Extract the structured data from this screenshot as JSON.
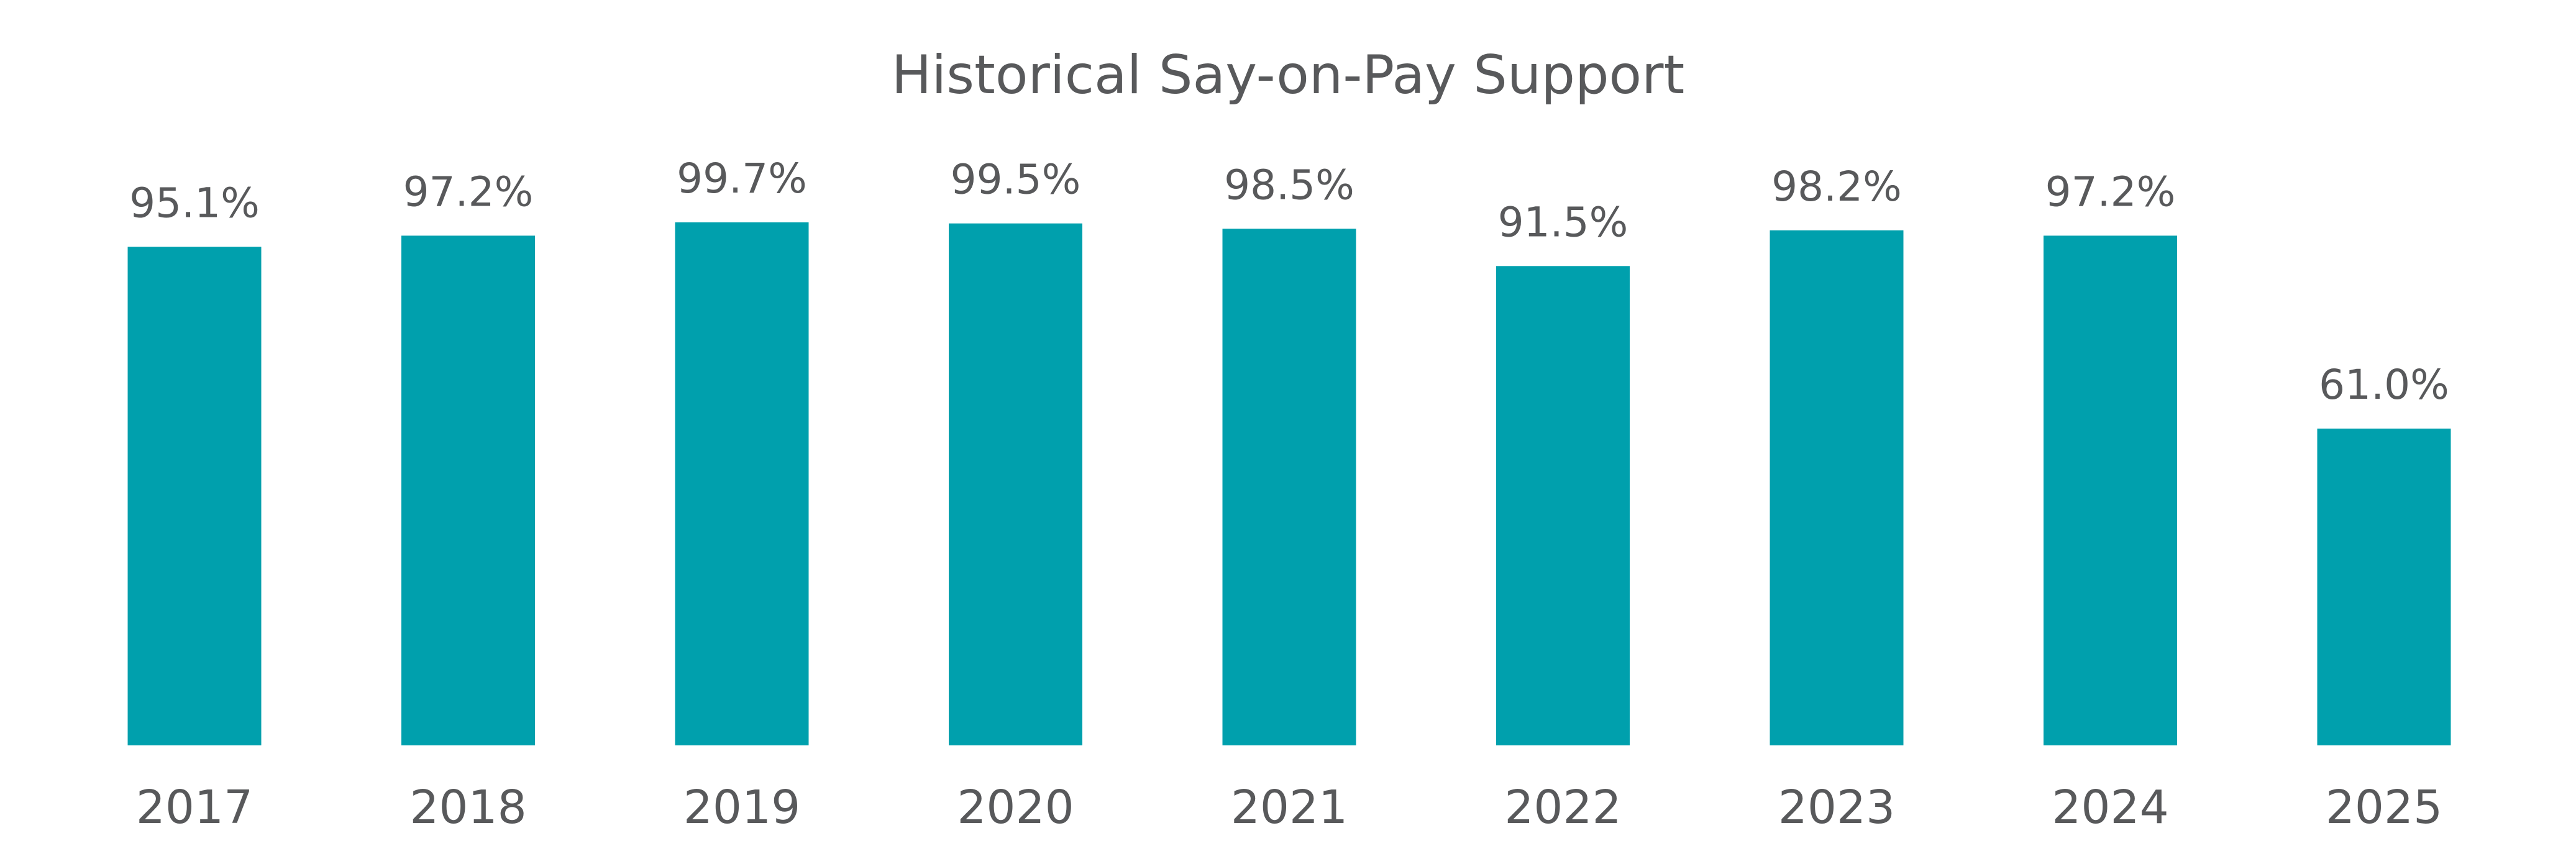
{
  "chart_data": {
    "type": "bar",
    "title": "Historical Say-on-Pay Support",
    "xlabel": "",
    "ylabel": "",
    "categories": [
      "2017",
      "2018",
      "2019",
      "2020",
      "2021",
      "2022",
      "2023",
      "2024",
      "2025"
    ],
    "values": [
      95.1,
      97.2,
      99.7,
      99.5,
      98.5,
      91.5,
      98.2,
      97.2,
      61.0
    ],
    "value_labels": [
      "95.1%",
      "97.2%",
      "99.7%",
      "99.5%",
      "98.5%",
      "91.5%",
      "98.2%",
      "97.2%",
      "61.0%"
    ],
    "ylim": [
      0,
      100
    ],
    "grid": false,
    "legend": "none",
    "bar_color": "#00a0ad",
    "text_color": "#58595b"
  }
}
